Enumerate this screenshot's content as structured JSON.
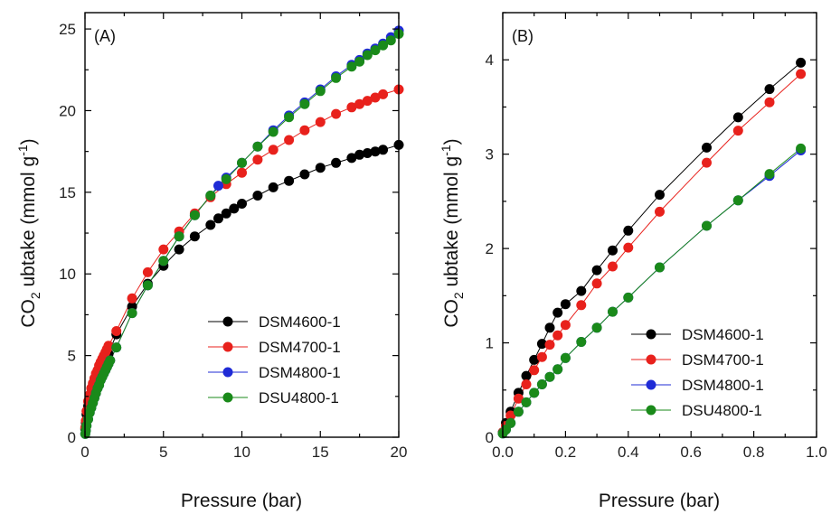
{
  "chart_data": [
    {
      "type": "line",
      "panel_label": "(A)",
      "xlabel": "Pressure (bar)",
      "ylabel_main": "CO",
      "ylabel_sub": "2",
      "ylabel_rest": " ubtake (mmol g",
      "ylabel_sup": "-1",
      "ylabel_end": ")",
      "xlim": [
        0,
        20
      ],
      "ylim": [
        0,
        26
      ],
      "xticks": [
        0,
        5,
        10,
        15,
        20
      ],
      "yticks": [
        0,
        5,
        10,
        15,
        20,
        25
      ],
      "legend_position": "bottom-right",
      "series": [
        {
          "name": "DSM4600-1",
          "color": "#000000",
          "x": [
            0.02,
            0.05,
            0.1,
            0.2,
            0.3,
            0.4,
            0.5,
            0.6,
            0.7,
            0.8,
            0.9,
            1.0,
            1.1,
            1.2,
            1.3,
            1.4,
            1.5,
            2,
            3,
            4,
            5,
            6,
            7,
            8,
            8.5,
            9,
            9.5,
            10,
            11,
            12,
            13,
            14,
            15,
            16,
            17,
            17.5,
            18,
            18.5,
            19,
            20
          ],
          "y": [
            0.5,
            0.9,
            1.4,
            1.9,
            2.3,
            2.6,
            2.9,
            3.2,
            3.4,
            3.6,
            3.9,
            4.1,
            4.3,
            4.5,
            4.7,
            4.9,
            5.1,
            6.3,
            8.0,
            9.4,
            10.5,
            11.5,
            12.3,
            13.0,
            13.4,
            13.7,
            14.0,
            14.3,
            14.8,
            15.3,
            15.7,
            16.1,
            16.5,
            16.8,
            17.1,
            17.3,
            17.4,
            17.5,
            17.6,
            17.9
          ]
        },
        {
          "name": "DSM4700-1",
          "color": "#e8211c",
          "x": [
            0.02,
            0.05,
            0.1,
            0.2,
            0.3,
            0.4,
            0.5,
            0.6,
            0.7,
            0.8,
            0.9,
            1.0,
            1.1,
            1.2,
            1.3,
            1.4,
            1.5,
            2,
            3,
            4,
            5,
            6,
            7,
            8,
            9,
            10,
            11,
            12,
            13,
            14,
            15,
            16,
            17,
            17.5,
            18,
            18.5,
            19,
            20
          ],
          "y": [
            0.6,
            1.0,
            1.6,
            2.2,
            2.6,
            3.0,
            3.3,
            3.6,
            3.9,
            4.1,
            4.4,
            4.6,
            4.8,
            5.0,
            5.2,
            5.4,
            5.6,
            6.5,
            8.5,
            10.1,
            11.5,
            12.6,
            13.7,
            14.7,
            15.5,
            16.2,
            17.0,
            17.6,
            18.2,
            18.8,
            19.3,
            19.8,
            20.2,
            20.4,
            20.6,
            20.8,
            21.0,
            21.3
          ]
        },
        {
          "name": "DSM4800-1",
          "color": "#1f2bd6",
          "x": [
            0.02,
            0.05,
            0.1,
            0.2,
            0.3,
            0.4,
            0.5,
            0.6,
            0.7,
            0.8,
            0.9,
            1.0,
            1.1,
            1.2,
            1.3,
            1.4,
            1.5,
            1.6,
            2,
            3,
            4,
            5,
            6,
            7,
            8,
            8.5,
            9,
            10,
            11,
            12,
            13,
            14,
            15,
            16,
            17,
            17.5,
            18,
            18.5,
            19,
            19.5,
            20
          ],
          "y": [
            0.2,
            0.4,
            0.7,
            1.1,
            1.5,
            1.8,
            2.1,
            2.4,
            2.7,
            3.0,
            3.2,
            3.5,
            3.7,
            3.9,
            4.1,
            4.3,
            4.5,
            4.7,
            5.5,
            7.6,
            9.3,
            10.8,
            12.3,
            13.6,
            14.8,
            15.4,
            15.9,
            16.8,
            17.8,
            18.8,
            19.7,
            20.5,
            21.3,
            22.1,
            22.8,
            23.1,
            23.5,
            23.8,
            24.1,
            24.5,
            24.9
          ]
        },
        {
          "name": "DSU4800-1",
          "color": "#1a8a1a",
          "x": [
            0.02,
            0.05,
            0.1,
            0.2,
            0.3,
            0.4,
            0.5,
            0.6,
            0.7,
            0.8,
            0.9,
            1.0,
            1.1,
            1.2,
            1.3,
            1.4,
            1.5,
            1.6,
            2,
            3,
            4,
            5,
            6,
            7,
            8,
            9,
            10,
            11,
            12,
            13,
            14,
            15,
            16,
            17,
            17.5,
            18,
            18.5,
            19,
            19.5,
            20
          ],
          "y": [
            0.2,
            0.4,
            0.7,
            1.1,
            1.5,
            1.8,
            2.1,
            2.4,
            2.7,
            3.0,
            3.2,
            3.5,
            3.7,
            3.9,
            4.1,
            4.3,
            4.5,
            4.7,
            5.5,
            7.6,
            9.3,
            10.8,
            12.3,
            13.6,
            14.8,
            15.8,
            16.8,
            17.8,
            18.7,
            19.6,
            20.4,
            21.2,
            22.0,
            22.7,
            23.0,
            23.4,
            23.7,
            24.0,
            24.3,
            24.7
          ]
        }
      ]
    },
    {
      "type": "line",
      "panel_label": "(B)",
      "xlabel": "Pressure (bar)",
      "ylabel_main": "CO",
      "ylabel_sub": "2",
      "ylabel_rest": " ubtake (mmol g",
      "ylabel_sup": "-1",
      "ylabel_end": ")",
      "xlim": [
        0,
        1.0
      ],
      "ylim": [
        0,
        4.5
      ],
      "xticks": [
        0.0,
        0.2,
        0.4,
        0.6,
        0.8,
        1.0
      ],
      "xtick_labels": [
        "0.0",
        "0.2",
        "0.4",
        "0.6",
        "0.8",
        "1.0"
      ],
      "yticks": [
        0,
        1,
        2,
        3,
        4
      ],
      "legend_position": "bottom-right",
      "series": [
        {
          "name": "DSM4600-1",
          "color": "#000000",
          "x": [
            0.0,
            0.01,
            0.025,
            0.05,
            0.075,
            0.1,
            0.125,
            0.15,
            0.175,
            0.2,
            0.25,
            0.3,
            0.35,
            0.4,
            0.5,
            0.65,
            0.75,
            0.85,
            0.95
          ],
          "y": [
            0.05,
            0.15,
            0.27,
            0.47,
            0.65,
            0.82,
            0.99,
            1.16,
            1.32,
            1.41,
            1.55,
            1.77,
            1.98,
            2.19,
            2.57,
            3.07,
            3.39,
            3.69,
            3.97
          ]
        },
        {
          "name": "DSM4700-1",
          "color": "#e8211c",
          "x": [
            0.0,
            0.01,
            0.025,
            0.05,
            0.075,
            0.1,
            0.125,
            0.15,
            0.175,
            0.2,
            0.25,
            0.3,
            0.35,
            0.4,
            0.5,
            0.65,
            0.75,
            0.85,
            0.95
          ],
          "y": [
            0.05,
            0.12,
            0.23,
            0.41,
            0.56,
            0.71,
            0.85,
            0.98,
            1.08,
            1.19,
            1.4,
            1.63,
            1.81,
            2.01,
            2.39,
            2.91,
            3.25,
            3.55,
            3.85
          ]
        },
        {
          "name": "DSM4800-1",
          "color": "#1f2bd6",
          "x": [
            0.0,
            0.01,
            0.025,
            0.05,
            0.075,
            0.1,
            0.125,
            0.15,
            0.175,
            0.2,
            0.25,
            0.3,
            0.35,
            0.4,
            0.5,
            0.65,
            0.75,
            0.85,
            0.95
          ],
          "y": [
            0.04,
            0.08,
            0.15,
            0.27,
            0.37,
            0.47,
            0.56,
            0.64,
            0.72,
            0.84,
            1.01,
            1.16,
            1.33,
            1.48,
            1.8,
            2.24,
            2.51,
            2.77,
            3.04
          ]
        },
        {
          "name": "DSU4800-1",
          "color": "#1a8a1a",
          "x": [
            0.0,
            0.01,
            0.025,
            0.05,
            0.075,
            0.1,
            0.125,
            0.15,
            0.175,
            0.2,
            0.25,
            0.3,
            0.35,
            0.4,
            0.5,
            0.65,
            0.75,
            0.85,
            0.95
          ],
          "y": [
            0.04,
            0.08,
            0.15,
            0.27,
            0.37,
            0.47,
            0.56,
            0.64,
            0.72,
            0.84,
            1.01,
            1.16,
            1.33,
            1.48,
            1.8,
            2.24,
            2.51,
            2.79,
            3.06
          ]
        }
      ]
    }
  ]
}
